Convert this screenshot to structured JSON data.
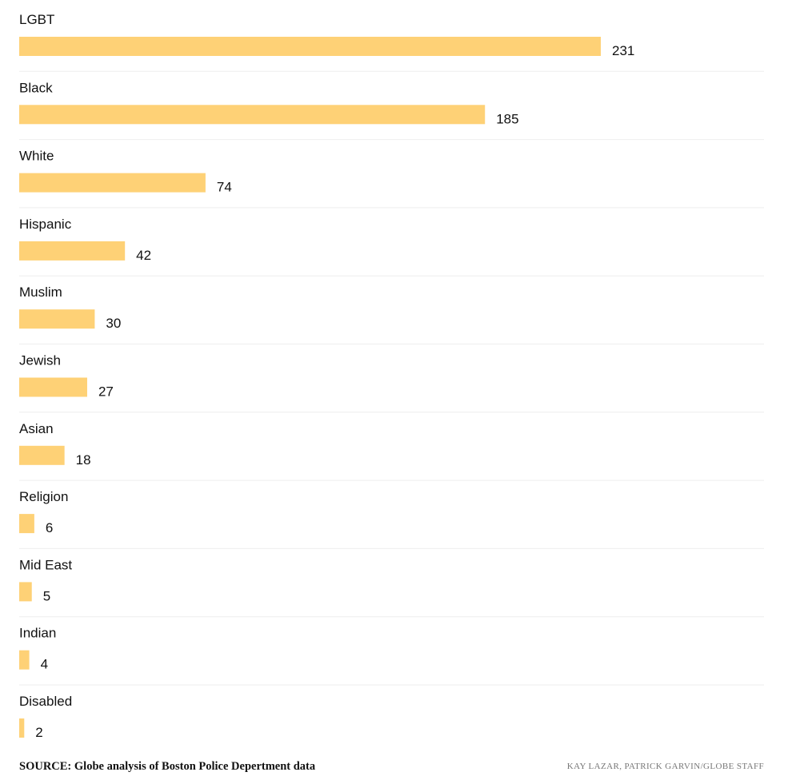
{
  "chart_data": {
    "type": "bar",
    "orientation": "horizontal",
    "categories": [
      "LGBT",
      "Black",
      "White",
      "Hispanic",
      "Muslim",
      "Jewish",
      "Asian",
      "Religion",
      "Mid East",
      "Indian",
      "Disabled"
    ],
    "values": [
      231,
      185,
      74,
      42,
      30,
      27,
      18,
      6,
      5,
      4,
      2
    ],
    "xlim": [
      0,
      231
    ],
    "grid": false,
    "bar_color": "#fed176",
    "separator_color": "#eeeeee"
  },
  "footer": {
    "source": "SOURCE: Globe analysis of Boston Police Depertment data",
    "credit": "KAY LAZAR, PATRICK GARVIN/GLOBE STAFF"
  }
}
